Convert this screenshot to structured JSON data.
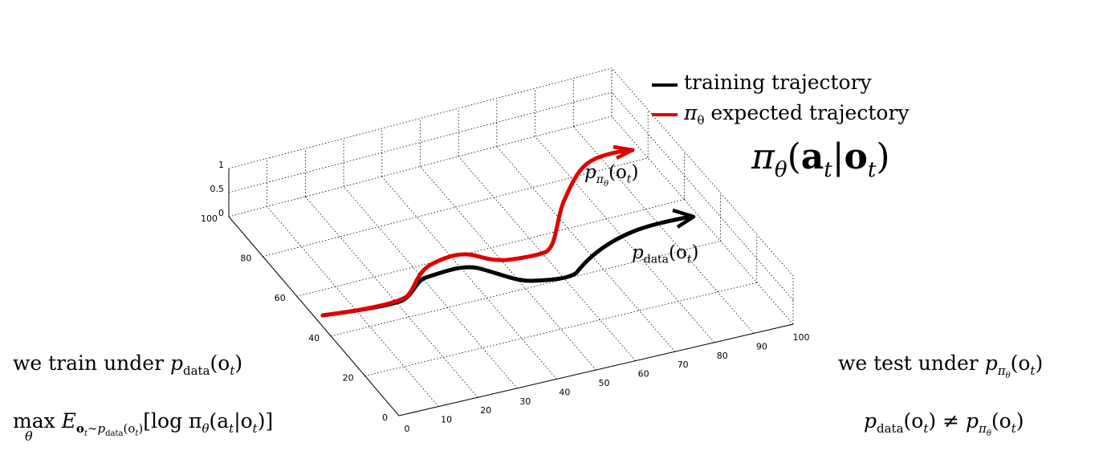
{
  "plot": {
    "axes": {
      "x_ticks": [
        "0",
        "10",
        "20",
        "30",
        "40",
        "50",
        "60",
        "70",
        "80",
        "90",
        "100"
      ],
      "y_ticks": [
        "0",
        "20",
        "40",
        "60",
        "80",
        "100"
      ],
      "z_ticks": [
        "0",
        "0.5",
        "1"
      ]
    },
    "legend": {
      "items": [
        {
          "label": "training trajectory",
          "color": "#000000"
        },
        {
          "label_var": "π",
          "label_sub": "θ",
          "label_rest": " expected trajectory",
          "color": "#e00000"
        }
      ]
    },
    "curves": {
      "black_label": {
        "p": "p",
        "sub": "data",
        "arg": "(o",
        "argsub": "t",
        "close": ")"
      },
      "red_label": {
        "p": "p",
        "sub": "π",
        "subsub": "θ",
        "arg": "(o",
        "argsub": "t",
        "close": ")"
      }
    }
  },
  "formula": {
    "pi": "π",
    "theta": "θ",
    "open": "(",
    "a": "a",
    "t1": "t",
    "bar": "|",
    "o": "o",
    "t2": "t",
    "close": ")"
  },
  "left_text": {
    "line1_prefix": "we train under ",
    "line1_p": "p",
    "line1_sub": "data",
    "line1_arg": "(o",
    "line1_argsub": "t",
    "line1_close": ")",
    "line2_max": "max",
    "line2_theta": "θ",
    "line2_E": "E",
    "line2_sub": "o",
    "line2_subt": "t",
    "line2_sim": "∼p",
    "line2_subdata": "data",
    "line2_subarg": "(o",
    "line2_subargt": "t",
    "line2_subclose": ")",
    "line2_body": "[log π",
    "line2_body_sub": "θ",
    "line2_body2": "(a",
    "line2_t1": "t",
    "line2_bar": "|o",
    "line2_t2": "t",
    "line2_end": ")]"
  },
  "right_text": {
    "line1_prefix": "we test under ",
    "line1_p": "p",
    "line1_sub": "π",
    "line1_subsub": "θ",
    "line1_arg": "(o",
    "line1_argsub": "t",
    "line1_close": ")",
    "line2_p1": "p",
    "line2_sub1": "data",
    "line2_arg1": "(o",
    "line2_t1": "t",
    "line2_close1": ")",
    "line2_neq": " ≠ ",
    "line2_p2": "p",
    "line2_sub2": "π",
    "line2_subsub2": "θ",
    "line2_arg2": "(o",
    "line2_t2": "t",
    "line2_close2": ")"
  }
}
